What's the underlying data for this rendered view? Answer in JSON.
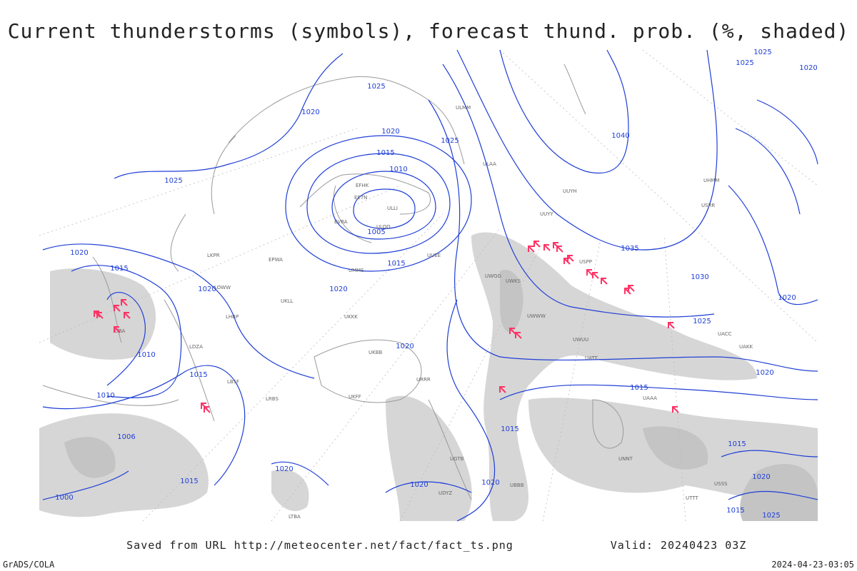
{
  "header": {
    "title": "Current thunderstorms (symbols), forecast thund. prob. (%, shaded)"
  },
  "footer": {
    "source": "Saved from URL http://meteocenter.net/fact/fact_ts.png",
    "valid": "Valid: 20240423 03Z",
    "credit": "GrADS/COLA",
    "timestamp": "2024-04-23-03:05"
  },
  "isobar_labels": [
    "1025",
    "1020",
    "1020",
    "1025",
    "1015",
    "1010",
    "1005",
    "1015",
    "1020",
    "1025",
    "1020",
    "1015",
    "1020",
    "1010",
    "1015",
    "1010",
    "1006",
    "1000",
    "1015",
    "1020",
    "1020",
    "1020",
    "1015",
    "1040",
    "1035",
    "1030",
    "1025",
    "1020",
    "1015",
    "1020",
    "1015",
    "1020",
    "1025",
    "1015",
    "1025",
    "1025",
    "1020",
    "1020"
  ],
  "stations": [
    "EFHK",
    "EETN",
    "ULLI",
    "ULOO",
    "EVRA",
    "UMMS",
    "UKKK",
    "UKLL",
    "UKBB",
    "UUEE",
    "UWGG",
    "UWKS",
    "UWWW",
    "UUYY",
    "ULMM",
    "ULAA",
    "USSS",
    "UNNT",
    "UAAA",
    "UTTT",
    "UGTB",
    "UDYZ",
    "LTBA",
    "LBSF",
    "LRBS",
    "LHBP",
    "EPWA",
    "LKPR",
    "LOWW",
    "LDZA",
    "LIRA",
    "UBBB",
    "UACC",
    "URRR",
    "UKFF",
    "USPP",
    "UWUU",
    "UATT",
    "UAKK",
    "UUYH",
    "USRR",
    "UHMM"
  ]
}
